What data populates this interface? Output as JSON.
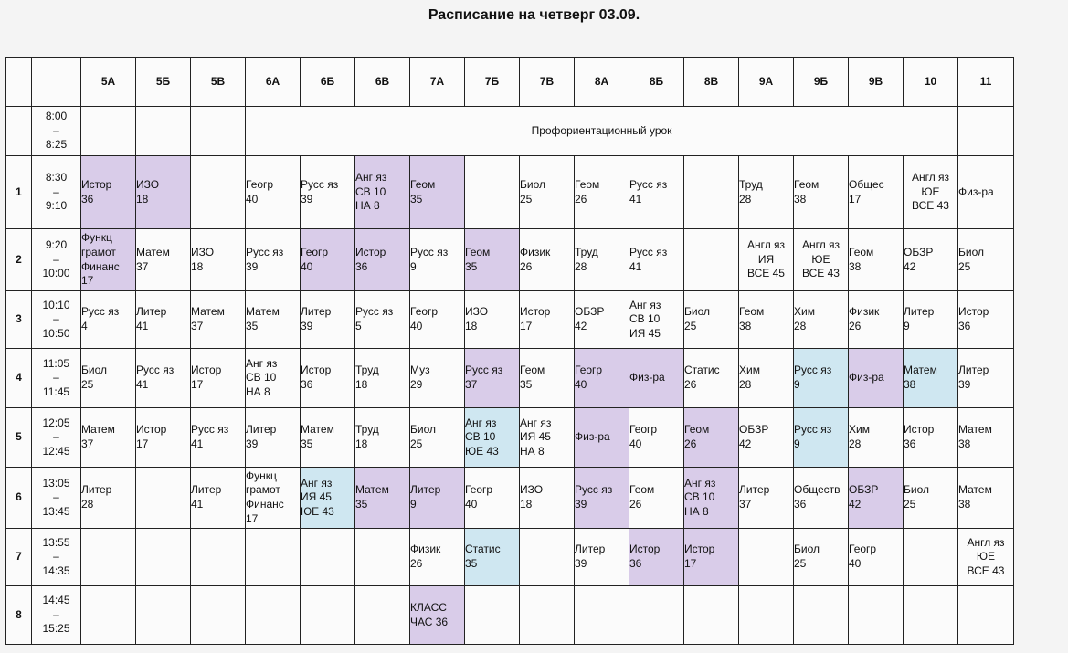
{
  "title": "Расписание на четверг 03.09.",
  "classes": [
    "5А",
    "5Б",
    "5В",
    "6А",
    "6Б",
    "6В",
    "7А",
    "7Б",
    "7В",
    "8А",
    "8Б",
    "8В",
    "9А",
    "9Б",
    "9В",
    "10",
    "11"
  ],
  "banner": "Профориентационный урок",
  "rows": [
    {
      "num": "1",
      "time": "8:30\n–\n9:10",
      "cells": [
        {
          "text": "Истор\n36",
          "color": "purple"
        },
        {
          "text": "ИЗО\n18",
          "color": "purple"
        },
        {
          "text": "",
          "color": ""
        },
        {
          "text": "Геогр\n40",
          "color": ""
        },
        {
          "text": "Русс яз\n39",
          "color": ""
        },
        {
          "text": "Анг яз\nСВ 10\nНА  8",
          "color": "purple"
        },
        {
          "text": "Геом\n35",
          "color": "purple"
        },
        {
          "text": "",
          "color": ""
        },
        {
          "text": "Биол\n25",
          "color": ""
        },
        {
          "text": "Геом\n26",
          "color": ""
        },
        {
          "text": "Русс яз\n41",
          "color": ""
        },
        {
          "text": "",
          "color": ""
        },
        {
          "text": "Труд\n28",
          "color": ""
        },
        {
          "text": "Геом\n38",
          "color": ""
        },
        {
          "text": "Общес\n17",
          "color": ""
        },
        {
          "text": "Англ яз\nЮЕ\nВСЕ 43",
          "color": "",
          "center": true
        },
        {
          "text": "Физ-ра",
          "color": ""
        }
      ]
    },
    {
      "num": "2",
      "time": "9:20\n–\n10:00",
      "cells": [
        {
          "text": "Функц\nграмот\nФинанс\n17",
          "color": "purple"
        },
        {
          "text": "Матем\n37",
          "color": ""
        },
        {
          "text": "ИЗО\n18",
          "color": ""
        },
        {
          "text": "Русс яз\n39",
          "color": ""
        },
        {
          "text": "Геогр\n40",
          "color": "purple"
        },
        {
          "text": "Истор\n36",
          "color": "purple"
        },
        {
          "text": "Русс яз\n9",
          "color": ""
        },
        {
          "text": "Геом\n35",
          "color": "purple"
        },
        {
          "text": "Физик\n26",
          "color": ""
        },
        {
          "text": "Труд\n28",
          "color": ""
        },
        {
          "text": "Русс яз\n41",
          "color": ""
        },
        {
          "text": "",
          "color": ""
        },
        {
          "text": "Англ яз\nИЯ\nВСЕ 45",
          "color": "",
          "center": true
        },
        {
          "text": "Англ яз\nЮЕ\nВСЕ 43",
          "color": "",
          "center": true
        },
        {
          "text": "Геом\n38",
          "color": ""
        },
        {
          "text": "ОБЗР\n42",
          "color": ""
        },
        {
          "text": "Биол\n25",
          "color": ""
        }
      ]
    },
    {
      "num": "3",
      "time": "10:10\n–\n10:50",
      "cells": [
        {
          "text": "Русс яз\n4",
          "color": ""
        },
        {
          "text": "Литер\n41",
          "color": ""
        },
        {
          "text": "Матем\n37",
          "color": ""
        },
        {
          "text": "Матем\n35",
          "color": ""
        },
        {
          "text": "Литер\n39",
          "color": ""
        },
        {
          "text": "Русс яз\n5",
          "color": ""
        },
        {
          "text": "Геогр\n40",
          "color": ""
        },
        {
          "text": "ИЗО\n18",
          "color": ""
        },
        {
          "text": "Истор\n17",
          "color": ""
        },
        {
          "text": "ОБЗР\n42",
          "color": ""
        },
        {
          "text": "Анг яз\nСВ 10\nИЯ 45",
          "color": ""
        },
        {
          "text": "Биол\n25",
          "color": ""
        },
        {
          "text": "Геом\n38",
          "color": ""
        },
        {
          "text": "Хим\n28",
          "color": ""
        },
        {
          "text": "Физик\n26",
          "color": ""
        },
        {
          "text": "Литер\n9",
          "color": ""
        },
        {
          "text": "Истор\n36",
          "color": ""
        }
      ]
    },
    {
      "num": "4",
      "time": "11:05\n–\n11:45",
      "cells": [
        {
          "text": "Биол\n25",
          "color": ""
        },
        {
          "text": "Русс яз\n41",
          "color": ""
        },
        {
          "text": "Истор\n17",
          "color": ""
        },
        {
          "text": "Анг яз\nСВ 10\nНА  8",
          "color": ""
        },
        {
          "text": "Истор\n36",
          "color": ""
        },
        {
          "text": "Труд\n18",
          "color": ""
        },
        {
          "text": "Муз\n29",
          "color": ""
        },
        {
          "text": "Русс яз\n37",
          "color": "purple"
        },
        {
          "text": "Геом\n35",
          "color": ""
        },
        {
          "text": "Геогр\n40",
          "color": "purple"
        },
        {
          "text": "Физ-ра",
          "color": "purple"
        },
        {
          "text": "Статис\n26",
          "color": ""
        },
        {
          "text": "Хим\n28",
          "color": ""
        },
        {
          "text": "Русс яз\n9",
          "color": "blue"
        },
        {
          "text": "Физ-ра",
          "color": "purple"
        },
        {
          "text": "Матем\n38",
          "color": "blue"
        },
        {
          "text": "Литер\n39",
          "color": ""
        }
      ]
    },
    {
      "num": "5",
      "time": "12:05\n–\n12:45",
      "cells": [
        {
          "text": "Матем\n37",
          "color": ""
        },
        {
          "text": "Истор\n17",
          "color": ""
        },
        {
          "text": "Русс яз\n41",
          "color": ""
        },
        {
          "text": "Литер\n39",
          "color": ""
        },
        {
          "text": "Матем\n35",
          "color": ""
        },
        {
          "text": "Труд\n18",
          "color": ""
        },
        {
          "text": "Биол\n25",
          "color": ""
        },
        {
          "text": "Анг яз\nСВ 10\nЮЕ 43",
          "color": "blue"
        },
        {
          "text": "Анг яз\nИЯ 45\nНА  8",
          "color": ""
        },
        {
          "text": "Физ-ра",
          "color": "purple"
        },
        {
          "text": "Геогр\n40",
          "color": ""
        },
        {
          "text": "Геом\n26",
          "color": "purple"
        },
        {
          "text": "ОБЗР\n42",
          "color": ""
        },
        {
          "text": "Русс яз\n9",
          "color": "blue"
        },
        {
          "text": "Хим\n28",
          "color": ""
        },
        {
          "text": "Истор\n36",
          "color": ""
        },
        {
          "text": "Матем\n38",
          "color": ""
        }
      ]
    },
    {
      "num": "6",
      "time": "13:05\n–\n13:45",
      "cells": [
        {
          "text": "Литер\n28",
          "color": ""
        },
        {
          "text": "",
          "color": ""
        },
        {
          "text": "Литер\n41",
          "color": ""
        },
        {
          "text": "Функц\nграмот\nФинанс\n17",
          "color": ""
        },
        {
          "text": "Анг яз\nИЯ 45\nЮЕ 43",
          "color": "blue"
        },
        {
          "text": "Матем\n35",
          "color": "purple"
        },
        {
          "text": "Литер\n9",
          "color": "purple"
        },
        {
          "text": "Геогр\n40",
          "color": ""
        },
        {
          "text": "ИЗО\n18",
          "color": ""
        },
        {
          "text": "Русс яз\n39",
          "color": "purple"
        },
        {
          "text": "Геом\n26",
          "color": ""
        },
        {
          "text": "Анг яз\nСВ 10\nНА  8",
          "color": "purple"
        },
        {
          "text": "Литер\n37",
          "color": ""
        },
        {
          "text": "Обществ\n36",
          "color": ""
        },
        {
          "text": "ОБЗР\n42",
          "color": "purple"
        },
        {
          "text": "Биол\n25",
          "color": ""
        },
        {
          "text": "Матем\n38",
          "color": ""
        }
      ]
    },
    {
      "num": "7",
      "time": "13:55\n–\n14:35",
      "cells": [
        {
          "text": "",
          "color": ""
        },
        {
          "text": "",
          "color": ""
        },
        {
          "text": "",
          "color": ""
        },
        {
          "text": "",
          "color": ""
        },
        {
          "text": "",
          "color": ""
        },
        {
          "text": "",
          "color": ""
        },
        {
          "text": "Физик\n26",
          "color": ""
        },
        {
          "text": "Статис\n35",
          "color": "blue"
        },
        {
          "text": "",
          "color": ""
        },
        {
          "text": "Литер\n39",
          "color": ""
        },
        {
          "text": "Истор\n36",
          "color": "purple"
        },
        {
          "text": "Истор\n17",
          "color": "purple"
        },
        {
          "text": "",
          "color": ""
        },
        {
          "text": "Биол\n25",
          "color": ""
        },
        {
          "text": "Геогр\n40",
          "color": ""
        },
        {
          "text": "",
          "color": ""
        },
        {
          "text": "Англ яз\nЮЕ\nВСЕ 43",
          "color": "",
          "center": true
        }
      ]
    },
    {
      "num": "8",
      "time": "14:45\n–\n15:25",
      "cells": [
        {
          "text": "",
          "color": ""
        },
        {
          "text": "",
          "color": ""
        },
        {
          "text": "",
          "color": ""
        },
        {
          "text": "",
          "color": ""
        },
        {
          "text": "",
          "color": ""
        },
        {
          "text": "",
          "color": ""
        },
        {
          "text": "КЛАСС\nЧАС 36",
          "color": "purple"
        },
        {
          "text": "",
          "color": ""
        },
        {
          "text": "",
          "color": ""
        },
        {
          "text": "",
          "color": ""
        },
        {
          "text": "",
          "color": ""
        },
        {
          "text": "",
          "color": ""
        },
        {
          "text": "",
          "color": ""
        },
        {
          "text": "",
          "color": ""
        },
        {
          "text": "",
          "color": ""
        },
        {
          "text": "",
          "color": ""
        },
        {
          "text": "",
          "color": ""
        }
      ]
    }
  ],
  "zero_row": {
    "time": "8:00\n–\n8:25"
  }
}
